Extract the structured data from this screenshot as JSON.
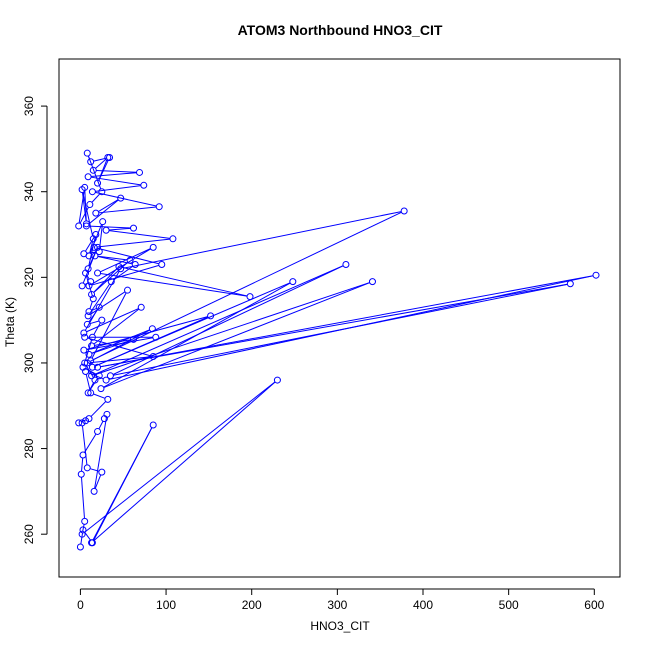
{
  "chart_data": {
    "type": "scatter",
    "title": "ATOM3 Northbound HNO3_CIT",
    "xlabel": "HNO3_CIT",
    "ylabel": "Theta (K)",
    "xlim": [
      -25,
      630
    ],
    "ylim": [
      250,
      371
    ],
    "xticks": [
      0,
      100,
      200,
      300,
      400,
      500,
      600
    ],
    "yticks": [
      260,
      280,
      300,
      320,
      340,
      360
    ],
    "grid": false,
    "legend": "none",
    "style": "points connected by lines (type='o')",
    "series": [
      {
        "color": "#0000ff",
        "points": [
          [
            0,
            257
          ],
          [
            3,
            261
          ],
          [
            14,
            258
          ],
          [
            85,
            285.5
          ],
          [
            13,
            258
          ],
          [
            230,
            296
          ],
          [
            2,
            260
          ],
          [
            5,
            263
          ],
          [
            1,
            274
          ],
          [
            3,
            278.5
          ],
          [
            20,
            284
          ],
          [
            28,
            287
          ],
          [
            31,
            288
          ],
          [
            16,
            270
          ],
          [
            25,
            274.5
          ],
          [
            8,
            275.5
          ],
          [
            2,
            286
          ],
          [
            6,
            286.5
          ],
          [
            -2,
            286
          ],
          [
            10,
            287
          ],
          [
            32,
            291.5
          ],
          [
            12,
            293
          ],
          [
            6,
            298
          ],
          [
            30,
            296
          ],
          [
            602,
            320.5
          ],
          [
            20,
            299
          ],
          [
            572,
            318.5
          ],
          [
            35,
            297
          ],
          [
            310,
            323
          ],
          [
            13,
            297
          ],
          [
            341,
            319
          ],
          [
            24,
            294
          ],
          [
            248,
            319
          ],
          [
            14,
            299
          ],
          [
            152,
            311
          ],
          [
            4,
            303
          ],
          [
            88,
            306
          ],
          [
            5,
            306
          ],
          [
            85,
            301.5
          ],
          [
            8,
            300
          ],
          [
            84,
            308
          ],
          [
            10,
            302
          ],
          [
            62,
            305.5
          ],
          [
            13,
            304
          ],
          [
            71,
            313
          ],
          [
            4,
            307
          ],
          [
            47,
            322
          ],
          [
            378,
            335.5
          ],
          [
            12,
            300.5
          ],
          [
            55,
            317
          ],
          [
            9,
            311
          ],
          [
            36,
            319
          ],
          [
            64,
            323
          ],
          [
            17,
            325
          ],
          [
            58,
            324
          ],
          [
            13,
            316
          ],
          [
            45,
            322.5
          ],
          [
            198,
            315.5
          ],
          [
            20,
            321
          ],
          [
            85,
            327
          ],
          [
            10,
            318
          ],
          [
            95,
            323
          ],
          [
            16,
            327
          ],
          [
            108,
            329
          ],
          [
            30,
            331
          ],
          [
            62,
            331.5
          ],
          [
            7,
            332
          ],
          [
            47,
            338.5
          ],
          [
            18,
            335
          ],
          [
            92,
            336.5
          ],
          [
            14,
            340
          ],
          [
            74,
            341.5
          ],
          [
            9,
            343.5
          ],
          [
            69,
            344.5
          ],
          [
            15,
            345
          ],
          [
            32,
            348
          ],
          [
            20,
            342
          ],
          [
            34,
            348
          ],
          [
            12,
            347
          ],
          [
            8,
            349
          ],
          [
            25,
            340
          ],
          [
            11,
            337
          ],
          [
            -2,
            332
          ],
          [
            5,
            341
          ],
          [
            7,
            332.5
          ],
          [
            2,
            340.5
          ],
          [
            15,
            329
          ],
          [
            10,
            325
          ],
          [
            26,
            333
          ],
          [
            22,
            326
          ],
          [
            4,
            325.5
          ],
          [
            18,
            330
          ],
          [
            9,
            322
          ],
          [
            20,
            327
          ],
          [
            2,
            318
          ],
          [
            12,
            319
          ],
          [
            6,
            321
          ],
          [
            15,
            315
          ],
          [
            10,
            312
          ],
          [
            22,
            313
          ],
          [
            8,
            309
          ],
          [
            25,
            310
          ],
          [
            14,
            306
          ],
          [
            5,
            300
          ],
          [
            17,
            296
          ],
          [
            9,
            293
          ],
          [
            22,
            297
          ],
          [
            3,
            299
          ]
        ]
      }
    ]
  }
}
